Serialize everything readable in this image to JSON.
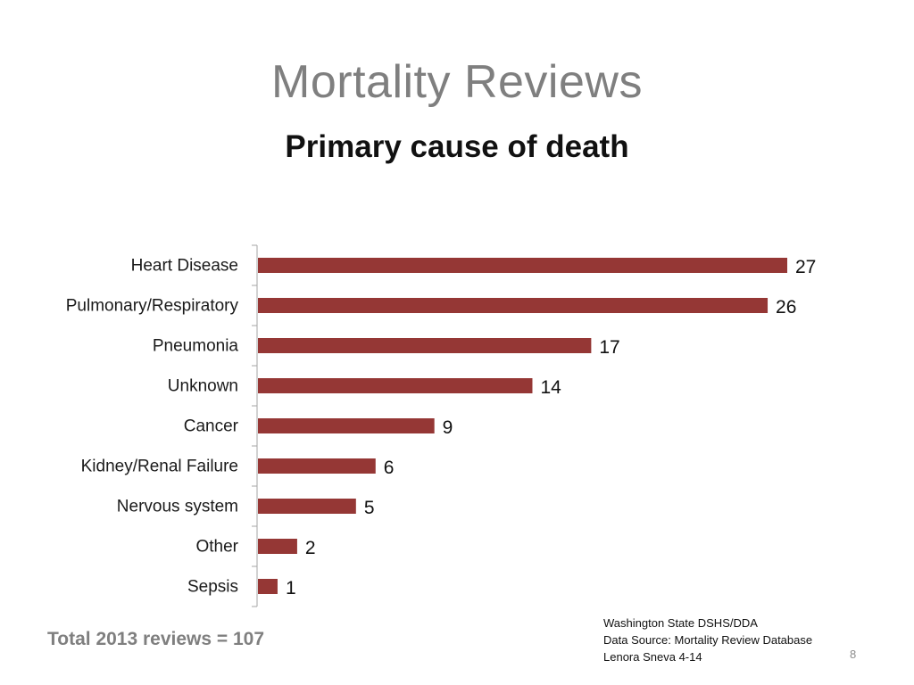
{
  "slide": {
    "title": "Mortality Reviews",
    "subtitle": "Primary cause of death",
    "total_text": "Total 2013 reviews = 107",
    "source_lines": [
      "Washington State DSHS/DDA",
      "Data Source: Mortality Review Database",
      "Lenora Sneva 4-14"
    ],
    "page_number": "8"
  },
  "chart_data": {
    "type": "bar",
    "orientation": "horizontal",
    "title": "Primary cause of death",
    "categories": [
      "Heart Disease",
      "Pulmonary/Respiratory",
      "Pneumonia",
      "Unknown",
      "Cancer",
      "Kidney/Renal Failure",
      "Nervous system",
      "Other",
      "Sepsis"
    ],
    "values": [
      27,
      26,
      17,
      14,
      9,
      6,
      5,
      2,
      1
    ],
    "xlim": [
      0,
      27
    ],
    "xlabel": "",
    "ylabel": "",
    "grid": false,
    "data_labels": true,
    "bar_color": "#953735"
  }
}
